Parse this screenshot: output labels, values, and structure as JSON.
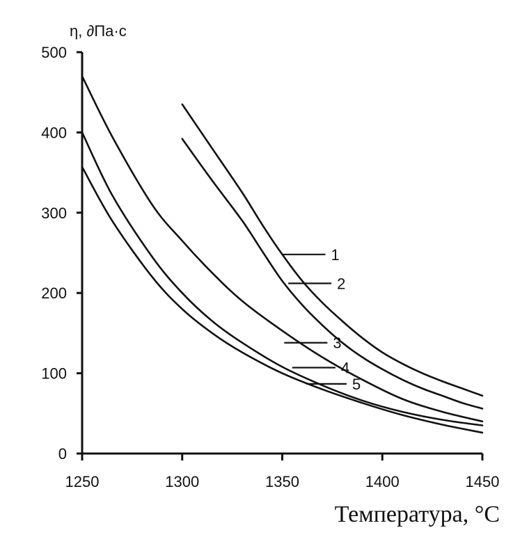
{
  "chart_data": {
    "type": "line",
    "ylabel": "η, ∂Па·с",
    "xlabel": "Температура, °C",
    "xlim": [
      1250,
      1450
    ],
    "ylim": [
      0,
      500
    ],
    "x_ticks": [
      "1250",
      "1300",
      "1350",
      "1400",
      "1450"
    ],
    "y_ticks": [
      "0",
      "100",
      "200",
      "300",
      "400",
      "500"
    ],
    "grid": false,
    "legend": "none",
    "series": [
      {
        "name": "1",
        "x": [
          1300,
          1315,
          1330,
          1340,
          1350,
          1360,
          1370,
          1380,
          1390,
          1400,
          1410,
          1420,
          1430,
          1440,
          1450
        ],
        "y": [
          435,
          380,
          325,
          285,
          248,
          215,
          188,
          165,
          144,
          126,
          112,
          100,
          90,
          81,
          72
        ],
        "label_point": [
          1350,
          248
        ]
      },
      {
        "name": "2",
        "x": [
          1300,
          1315,
          1330,
          1340,
          1350,
          1360,
          1370,
          1380,
          1390,
          1400,
          1410,
          1420,
          1430,
          1440,
          1450
        ],
        "y": [
          392,
          340,
          290,
          252,
          215,
          185,
          160,
          138,
          120,
          105,
          92,
          81,
          72,
          63,
          56
        ],
        "label_point": [
          1353,
          212
        ]
      },
      {
        "name": "3",
        "x": [
          1250,
          1265,
          1285,
          1300,
          1315,
          1330,
          1350,
          1370,
          1390,
          1410,
          1430,
          1450
        ],
        "y": [
          470,
          395,
          310,
          265,
          225,
          190,
          153,
          120,
          92,
          68,
          52,
          40
        ],
        "label_point": [
          1351,
          138
        ]
      },
      {
        "name": "4",
        "x": [
          1250,
          1265,
          1285,
          1300,
          1315,
          1330,
          1350,
          1370,
          1390,
          1410,
          1430,
          1450
        ],
        "y": [
          400,
          322,
          245,
          200,
          165,
          138,
          108,
          85,
          66,
          52,
          42,
          35
        ],
        "label_point": [
          1355,
          107
        ]
      },
      {
        "name": "5",
        "x": [
          1250,
          1265,
          1285,
          1300,
          1315,
          1330,
          1350,
          1370,
          1390,
          1410,
          1430,
          1450
        ],
        "y": [
          357,
          290,
          220,
          180,
          150,
          126,
          100,
          80,
          63,
          48,
          36,
          26
        ],
        "label_point": [
          1362,
          85
        ]
      }
    ]
  }
}
